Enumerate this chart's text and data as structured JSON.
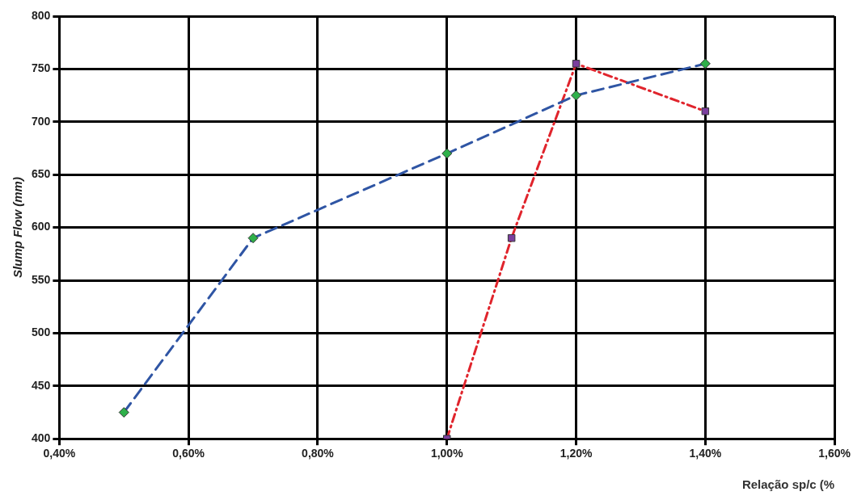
{
  "chart_data": {
    "type": "line",
    "xlabel": "Relação sp/c (%",
    "ylabel": "Slump Flow (mm)",
    "xlim": [
      0.4,
      1.6
    ],
    "xticks": [
      {
        "value": 0.4,
        "label": "0,40%"
      },
      {
        "value": 0.6,
        "label": "0,60%"
      },
      {
        "value": 0.8,
        "label": "0,80%"
      },
      {
        "value": 1.0,
        "label": "1,00%"
      },
      {
        "value": 1.2,
        "label": "1,20%"
      },
      {
        "value": 1.4,
        "label": "1,40%"
      },
      {
        "value": 1.6,
        "label": "1,60%"
      }
    ],
    "ylim": [
      400,
      800
    ],
    "yticks": [
      400,
      450,
      500,
      550,
      600,
      650,
      700,
      750,
      800
    ],
    "grid": true,
    "series": [
      {
        "x": [
          0.5,
          0.7,
          1.0,
          1.2,
          1.4
        ],
        "values": [
          425,
          590,
          670,
          725,
          755
        ],
        "color": "#2f55a4",
        "colors": [
          "#2fb04a",
          "#2fb04a",
          "#2fb04a",
          "#2fb04a",
          "#2fb04a"
        ],
        "marker": "diamond",
        "line_style": "dashed"
      },
      {
        "x": [
          1.0,
          1.1,
          1.2,
          1.4
        ],
        "values": [
          400,
          590,
          755,
          710
        ],
        "color": "#e0242c",
        "colors": [
          "#7b3f9e",
          "#7b3f9e",
          "#7b3f9e",
          "#7b3f9e"
        ],
        "marker": "square",
        "line_style": "dotted"
      }
    ]
  }
}
